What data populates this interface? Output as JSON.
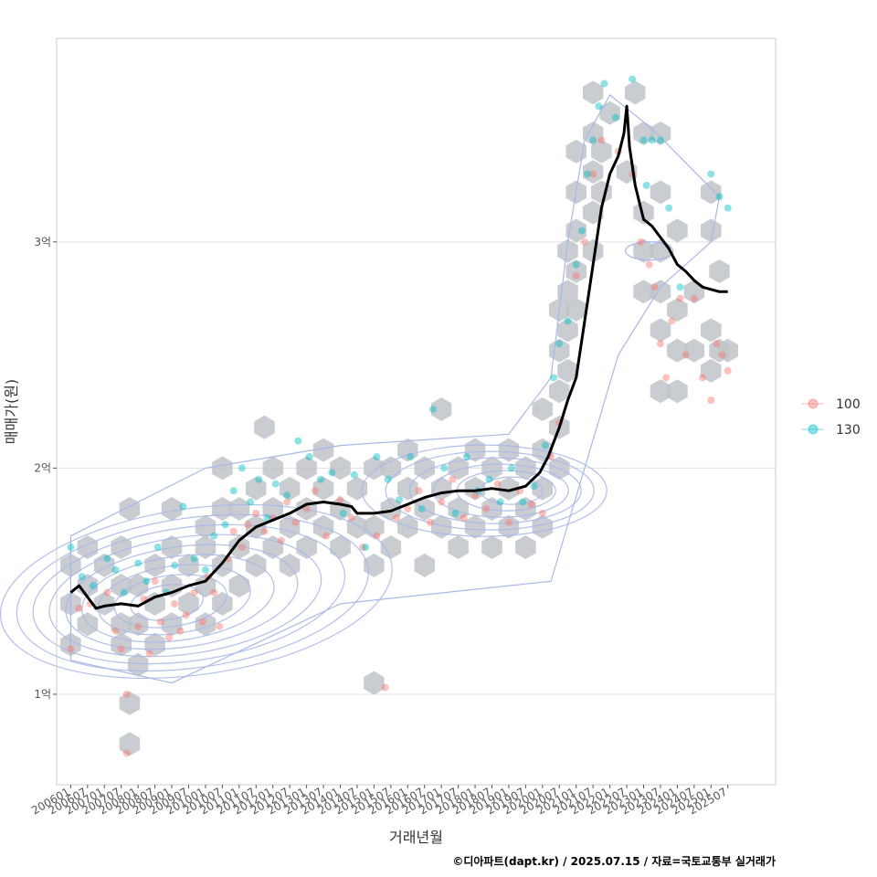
{
  "chart_data": {
    "type": "scatter",
    "xlabel": "거래년월",
    "ylabel": "매매가(원)",
    "caption": "©디아파트(dapt.kr) / 2025.07.15 / 자료=국토교통부 실거래가",
    "x_ticks": [
      "200601",
      "200607",
      "200701",
      "200707",
      "200801",
      "200807",
      "200901",
      "200907",
      "201001",
      "201007",
      "201101",
      "201107",
      "201201",
      "201207",
      "201301",
      "201307",
      "201401",
      "201407",
      "201501",
      "201507",
      "201601",
      "201607",
      "201701",
      "201707",
      "201801",
      "201807",
      "201901",
      "201907",
      "202001",
      "202007",
      "202101",
      "202107",
      "202201",
      "202207",
      "202301",
      "202307",
      "202401",
      "202407",
      "202501",
      "202507"
    ],
    "y_ticks": [
      {
        "value": 100000000,
        "label": "1억"
      },
      {
        "value": 200000000,
        "label": "2억"
      },
      {
        "value": 300000000,
        "label": "3억"
      }
    ],
    "xlim": [
      "2005-08",
      "2026-12"
    ],
    "ylim": [
      60000000,
      390000000
    ],
    "grid": true,
    "legend_position": "right",
    "colors": {
      "100": "#F8766D",
      "130": "#00BFC4",
      "trend": "#000000",
      "hex": "#BFC4CA",
      "contour": "#A8B8E8",
      "grid": "#E0E0E0",
      "panel_border": "#CCCCCC"
    },
    "series": [
      {
        "name": "100",
        "color": "#F8766D"
      },
      {
        "name": "130",
        "color": "#00BFC4"
      }
    ],
    "trend_line": [
      [
        "2006-01",
        145000000
      ],
      [
        "2006-04",
        148000000
      ],
      [
        "2006-07",
        143000000
      ],
      [
        "2006-10",
        138000000
      ],
      [
        "2007-01",
        139000000
      ],
      [
        "2007-07",
        140000000
      ],
      [
        "2008-01",
        139000000
      ],
      [
        "2008-07",
        143000000
      ],
      [
        "2009-01",
        145000000
      ],
      [
        "2009-07",
        148000000
      ],
      [
        "2010-01",
        150000000
      ],
      [
        "2010-07",
        158000000
      ],
      [
        "2011-01",
        168000000
      ],
      [
        "2011-07",
        174000000
      ],
      [
        "2012-01",
        177000000
      ],
      [
        "2012-07",
        180000000
      ],
      [
        "2013-01",
        184000000
      ],
      [
        "2013-07",
        185000000
      ],
      [
        "2014-01",
        184000000
      ],
      [
        "2014-05",
        183000000
      ],
      [
        "2014-07",
        180000000
      ],
      [
        "2015-01",
        180000000
      ],
      [
        "2015-07",
        181000000
      ],
      [
        "2016-01",
        184000000
      ],
      [
        "2016-07",
        187000000
      ],
      [
        "2017-01",
        189000000
      ],
      [
        "2017-07",
        190000000
      ],
      [
        "2018-01",
        190000000
      ],
      [
        "2018-07",
        191000000
      ],
      [
        "2019-01",
        190000000
      ],
      [
        "2019-07",
        192000000
      ],
      [
        "2019-12",
        198000000
      ],
      [
        "2020-03",
        205000000
      ],
      [
        "2020-07",
        218000000
      ],
      [
        "2020-10",
        230000000
      ],
      [
        "2021-01",
        240000000
      ],
      [
        "2021-04",
        265000000
      ],
      [
        "2021-07",
        290000000
      ],
      [
        "2021-10",
        315000000
      ],
      [
        "2022-01",
        330000000
      ],
      [
        "2022-04",
        338000000
      ],
      [
        "2022-06",
        348000000
      ],
      [
        "2022-07",
        360000000
      ],
      [
        "2022-08",
        342000000
      ],
      [
        "2022-10",
        325000000
      ],
      [
        "2023-01",
        310000000
      ],
      [
        "2023-04",
        307000000
      ],
      [
        "2023-07",
        302000000
      ],
      [
        "2023-10",
        297000000
      ],
      [
        "2024-01",
        290000000
      ],
      [
        "2024-04",
        287000000
      ],
      [
        "2024-07",
        283000000
      ],
      [
        "2024-10",
        280000000
      ],
      [
        "2025-01",
        279000000
      ],
      [
        "2025-04",
        278000000
      ],
      [
        "2025-07",
        278000000
      ]
    ],
    "hexbins": [
      [
        "2006-01",
        122000000
      ],
      [
        "2006-01",
        140000000
      ],
      [
        "2006-01",
        157000000
      ],
      [
        "2006-07",
        165000000
      ],
      [
        "2006-07",
        148000000
      ],
      [
        "2006-07",
        131000000
      ],
      [
        "2007-01",
        140000000
      ],
      [
        "2007-01",
        157000000
      ],
      [
        "2007-07",
        122000000
      ],
      [
        "2007-07",
        131000000
      ],
      [
        "2007-07",
        148000000
      ],
      [
        "2007-07",
        165000000
      ],
      [
        "2007-10",
        182000000
      ],
      [
        "2007-10",
        96000000
      ],
      [
        "2007-10",
        78000000
      ],
      [
        "2008-01",
        113000000
      ],
      [
        "2008-01",
        131000000
      ],
      [
        "2008-01",
        148000000
      ],
      [
        "2008-07",
        122000000
      ],
      [
        "2008-07",
        140000000
      ],
      [
        "2008-07",
        157000000
      ],
      [
        "2009-01",
        131000000
      ],
      [
        "2009-01",
        148000000
      ],
      [
        "2009-01",
        165000000
      ],
      [
        "2009-01",
        182000000
      ],
      [
        "2009-07",
        140000000
      ],
      [
        "2009-07",
        157000000
      ],
      [
        "2010-01",
        131000000
      ],
      [
        "2010-01",
        148000000
      ],
      [
        "2010-01",
        165000000
      ],
      [
        "2010-01",
        174000000
      ],
      [
        "2010-07",
        140000000
      ],
      [
        "2010-07",
        157000000
      ],
      [
        "2010-07",
        200000000
      ],
      [
        "2010-07",
        182000000
      ],
      [
        "2011-01",
        165000000
      ],
      [
        "2011-01",
        182000000
      ],
      [
        "2011-01",
        148000000
      ],
      [
        "2011-07",
        157000000
      ],
      [
        "2011-07",
        174000000
      ],
      [
        "2011-07",
        191000000
      ],
      [
        "2011-10",
        218000000
      ],
      [
        "2012-01",
        165000000
      ],
      [
        "2012-01",
        182000000
      ],
      [
        "2012-01",
        200000000
      ],
      [
        "2012-07",
        174000000
      ],
      [
        "2012-07",
        191000000
      ],
      [
        "2012-07",
        157000000
      ],
      [
        "2013-01",
        182000000
      ],
      [
        "2013-01",
        200000000
      ],
      [
        "2013-01",
        165000000
      ],
      [
        "2013-07",
        174000000
      ],
      [
        "2013-07",
        191000000
      ],
      [
        "2013-07",
        208000000
      ],
      [
        "2014-01",
        165000000
      ],
      [
        "2014-01",
        182000000
      ],
      [
        "2014-01",
        200000000
      ],
      [
        "2014-07",
        174000000
      ],
      [
        "2014-07",
        191000000
      ],
      [
        "2015-01",
        157000000
      ],
      [
        "2015-01",
        174000000
      ],
      [
        "2015-01",
        200000000
      ],
      [
        "2015-01",
        105000000
      ],
      [
        "2015-07",
        182000000
      ],
      [
        "2015-07",
        200000000
      ],
      [
        "2015-07",
        165000000
      ],
      [
        "2016-01",
        174000000
      ],
      [
        "2016-01",
        191000000
      ],
      [
        "2016-01",
        208000000
      ],
      [
        "2016-07",
        157000000
      ],
      [
        "2016-07",
        182000000
      ],
      [
        "2016-07",
        200000000
      ],
      [
        "2017-01",
        174000000
      ],
      [
        "2017-01",
        191000000
      ],
      [
        "2017-01",
        226000000
      ],
      [
        "2017-07",
        165000000
      ],
      [
        "2017-07",
        182000000
      ],
      [
        "2017-07",
        200000000
      ],
      [
        "2018-01",
        174000000
      ],
      [
        "2018-01",
        191000000
      ],
      [
        "2018-01",
        208000000
      ],
      [
        "2018-07",
        182000000
      ],
      [
        "2018-07",
        200000000
      ],
      [
        "2018-07",
        165000000
      ],
      [
        "2019-01",
        174000000
      ],
      [
        "2019-01",
        191000000
      ],
      [
        "2019-01",
        208000000
      ],
      [
        "2019-07",
        165000000
      ],
      [
        "2019-07",
        182000000
      ],
      [
        "2019-07",
        200000000
      ],
      [
        "2020-01",
        174000000
      ],
      [
        "2020-01",
        191000000
      ],
      [
        "2020-01",
        208000000
      ],
      [
        "2020-01",
        226000000
      ],
      [
        "2020-07",
        200000000
      ],
      [
        "2020-07",
        218000000
      ],
      [
        "2020-07",
        234000000
      ],
      [
        "2020-07",
        252000000
      ],
      [
        "2020-07",
        270000000
      ],
      [
        "2020-10",
        243000000
      ],
      [
        "2020-10",
        261000000
      ],
      [
        "2020-10",
        278000000
      ],
      [
        "2020-10",
        296000000
      ],
      [
        "2021-01",
        270000000
      ],
      [
        "2021-01",
        287000000
      ],
      [
        "2021-01",
        305000000
      ],
      [
        "2021-01",
        322000000
      ],
      [
        "2021-01",
        340000000
      ],
      [
        "2021-07",
        296000000
      ],
      [
        "2021-07",
        313000000
      ],
      [
        "2021-07",
        331000000
      ],
      [
        "2021-07",
        348000000
      ],
      [
        "2021-07",
        366000000
      ],
      [
        "2021-10",
        322000000
      ],
      [
        "2021-10",
        340000000
      ],
      [
        "2022-01",
        357000000
      ],
      [
        "2022-07",
        331000000
      ],
      [
        "2022-10",
        366000000
      ],
      [
        "2023-01",
        296000000
      ],
      [
        "2023-01",
        278000000
      ],
      [
        "2023-01",
        313000000
      ],
      [
        "2023-01",
        348000000
      ],
      [
        "2023-07",
        261000000
      ],
      [
        "2023-07",
        278000000
      ],
      [
        "2023-07",
        296000000
      ],
      [
        "2023-07",
        322000000
      ],
      [
        "2023-07",
        348000000
      ],
      [
        "2023-07",
        234000000
      ],
      [
        "2024-01",
        252000000
      ],
      [
        "2024-01",
        270000000
      ],
      [
        "2024-01",
        305000000
      ],
      [
        "2024-01",
        234000000
      ],
      [
        "2024-07",
        252000000
      ],
      [
        "2024-07",
        278000000
      ],
      [
        "2025-01",
        243000000
      ],
      [
        "2025-01",
        261000000
      ],
      [
        "2025-01",
        305000000
      ],
      [
        "2025-01",
        322000000
      ],
      [
        "2025-04",
        287000000
      ],
      [
        "2025-04",
        252000000
      ],
      [
        "2025-07",
        252000000
      ]
    ],
    "points_100": [
      [
        "2006-01",
        120000000
      ],
      [
        "2006-04",
        138000000
      ],
      [
        "2006-08",
        140000000
      ],
      [
        "2007-02",
        145000000
      ],
      [
        "2007-05",
        128000000
      ],
      [
        "2007-07",
        120000000
      ],
      [
        "2007-09",
        100000000
      ],
      [
        "2007-09",
        74000000
      ],
      [
        "2008-01",
        130000000
      ],
      [
        "2008-03",
        142000000
      ],
      [
        "2008-05",
        118000000
      ],
      [
        "2008-07",
        150000000
      ],
      [
        "2008-09",
        132000000
      ],
      [
        "2008-12",
        125000000
      ],
      [
        "2009-02",
        140000000
      ],
      [
        "2009-04",
        128000000
      ],
      [
        "2009-06",
        135000000
      ],
      [
        "2009-09",
        145000000
      ],
      [
        "2009-12",
        132000000
      ],
      [
        "2010-02",
        152000000
      ],
      [
        "2010-04",
        145000000
      ],
      [
        "2010-06",
        130000000
      ],
      [
        "2010-09",
        160000000
      ],
      [
        "2010-11",
        172000000
      ],
      [
        "2011-02",
        165000000
      ],
      [
        "2011-04",
        175000000
      ],
      [
        "2011-07",
        180000000
      ],
      [
        "2011-10",
        172000000
      ],
      [
        "2012-01",
        178000000
      ],
      [
        "2012-04",
        168000000
      ],
      [
        "2012-06",
        185000000
      ],
      [
        "2012-09",
        176000000
      ],
      [
        "2013-01",
        182000000
      ],
      [
        "2013-04",
        190000000
      ],
      [
        "2013-08",
        170000000
      ],
      [
        "2014-01",
        186000000
      ],
      [
        "2014-05",
        178000000
      ],
      [
        "2014-09",
        165000000
      ],
      [
        "2015-02",
        170000000
      ],
      [
        "2015-05",
        103000000
      ],
      [
        "2015-09",
        178000000
      ],
      [
        "2016-01",
        182000000
      ],
      [
        "2016-05",
        190000000
      ],
      [
        "2016-09",
        176000000
      ],
      [
        "2017-01",
        185000000
      ],
      [
        "2017-05",
        195000000
      ],
      [
        "2017-09",
        178000000
      ],
      [
        "2018-01",
        188000000
      ],
      [
        "2018-05",
        182000000
      ],
      [
        "2018-09",
        193000000
      ],
      [
        "2019-01",
        176000000
      ],
      [
        "2019-05",
        190000000
      ],
      [
        "2019-09",
        184000000
      ],
      [
        "2020-01",
        180000000
      ],
      [
        "2020-04",
        205000000
      ],
      [
        "2020-07",
        220000000
      ],
      [
        "2021-01",
        285000000
      ],
      [
        "2021-04",
        300000000
      ],
      [
        "2021-07",
        330000000
      ],
      [
        "2021-10",
        345000000
      ],
      [
        "2022-04",
        340000000
      ],
      [
        "2022-09",
        330000000
      ],
      [
        "2022-12",
        300000000
      ],
      [
        "2023-03",
        290000000
      ],
      [
        "2023-05",
        280000000
      ],
      [
        "2023-07",
        255000000
      ],
      [
        "2023-09",
        240000000
      ],
      [
        "2023-11",
        265000000
      ],
      [
        "2024-02",
        275000000
      ],
      [
        "2024-04",
        250000000
      ],
      [
        "2024-07",
        275000000
      ],
      [
        "2024-10",
        240000000
      ],
      [
        "2025-01",
        230000000
      ],
      [
        "2025-03",
        255000000
      ],
      [
        "2025-05",
        250000000
      ],
      [
        "2025-07",
        243000000
      ]
    ],
    "points_130": [
      [
        "2006-01",
        165000000
      ],
      [
        "2006-05",
        152000000
      ],
      [
        "2006-09",
        148000000
      ],
      [
        "2007-02",
        160000000
      ],
      [
        "2007-05",
        155000000
      ],
      [
        "2007-08",
        145000000
      ],
      [
        "2008-01",
        158000000
      ],
      [
        "2008-04",
        150000000
      ],
      [
        "2008-08",
        165000000
      ],
      [
        "2008-11",
        145000000
      ],
      [
        "2009-02",
        157000000
      ],
      [
        "2009-05",
        183000000
      ],
      [
        "2009-09",
        160000000
      ],
      [
        "2010-01",
        155000000
      ],
      [
        "2010-04",
        170000000
      ],
      [
        "2010-08",
        175000000
      ],
      [
        "2010-11",
        190000000
      ],
      [
        "2011-02",
        200000000
      ],
      [
        "2011-05",
        185000000
      ],
      [
        "2011-08",
        195000000
      ],
      [
        "2011-11",
        178000000
      ],
      [
        "2012-02",
        193000000
      ],
      [
        "2012-06",
        188000000
      ],
      [
        "2012-10",
        212000000
      ],
      [
        "2013-02",
        205000000
      ],
      [
        "2013-06",
        195000000
      ],
      [
        "2013-10",
        198000000
      ],
      [
        "2014-02",
        180000000
      ],
      [
        "2014-06",
        197000000
      ],
      [
        "2014-10",
        165000000
      ],
      [
        "2015-02",
        205000000
      ],
      [
        "2015-06",
        195000000
      ],
      [
        "2015-10",
        186000000
      ],
      [
        "2016-02",
        205000000
      ],
      [
        "2016-06",
        182000000
      ],
      [
        "2016-10",
        226000000
      ],
      [
        "2017-02",
        200000000
      ],
      [
        "2017-06",
        180000000
      ],
      [
        "2017-10",
        205000000
      ],
      [
        "2018-02",
        190000000
      ],
      [
        "2018-06",
        195000000
      ],
      [
        "2018-10",
        185000000
      ],
      [
        "2019-02",
        200000000
      ],
      [
        "2019-06",
        185000000
      ],
      [
        "2019-10",
        192000000
      ],
      [
        "2020-02",
        210000000
      ],
      [
        "2020-05",
        240000000
      ],
      [
        "2020-07",
        255000000
      ],
      [
        "2020-10",
        265000000
      ],
      [
        "2021-01",
        290000000
      ],
      [
        "2021-03",
        305000000
      ],
      [
        "2021-05",
        330000000
      ],
      [
        "2021-07",
        345000000
      ],
      [
        "2021-09",
        360000000
      ],
      [
        "2021-11",
        370000000
      ],
      [
        "2022-03",
        355000000
      ],
      [
        "2022-09",
        372000000
      ],
      [
        "2023-01",
        345000000
      ],
      [
        "2023-04",
        345000000
      ],
      [
        "2023-07",
        345000000
      ],
      [
        "2023-02",
        325000000
      ],
      [
        "2023-10",
        315000000
      ],
      [
        "2024-02",
        280000000
      ],
      [
        "2025-01",
        330000000
      ],
      [
        "2025-04",
        320000000
      ],
      [
        "2025-07",
        315000000
      ]
    ]
  }
}
